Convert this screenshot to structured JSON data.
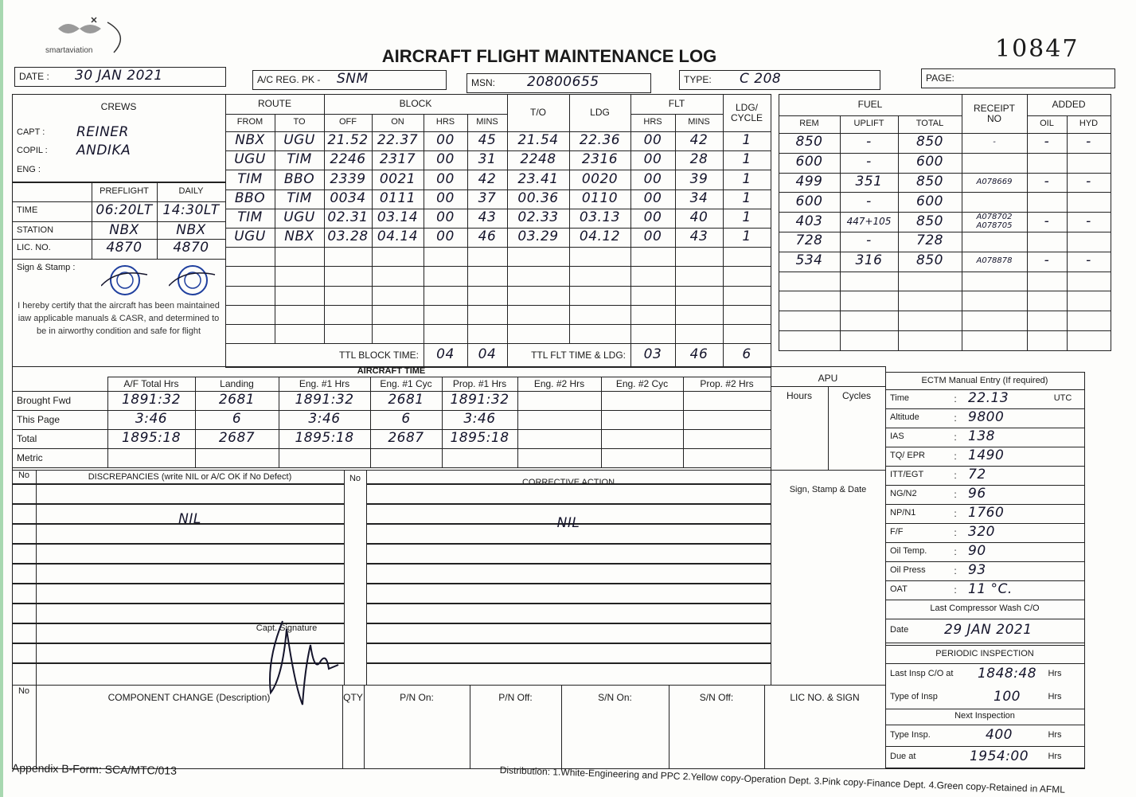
{
  "header": {
    "logo_text": "smartaviation",
    "title": "AIRCRAFT FLIGHT MAINTENANCE LOG",
    "serial": "10847",
    "date_label": "DATE :",
    "date": "30 JAN 2021",
    "reg_label": "A/C REG. PK -",
    "reg": "SNM",
    "msn_label": "MSN:",
    "msn": "20800655",
    "type_label": "TYPE:",
    "type": "C 208",
    "page_label": "PAGE:"
  },
  "crews": {
    "title": "CREWS",
    "capt_label": "CAPT :",
    "capt": "REINER",
    "copil_label": "COPIL :",
    "copil": "ANDIKA",
    "eng_label": "ENG :",
    "preflight_label": "PREFLIGHT",
    "daily_label": "DAILY",
    "time_label": "TIME",
    "time_preflight": "06:20LT",
    "time_daily": "14:30LT",
    "station_label": "STATION",
    "station_preflight": "NBX",
    "station_daily": "NBX",
    "lic_label": "LIC. NO.",
    "lic_preflight": "4870",
    "lic_daily": "4870",
    "sign_label": "Sign & Stamp :",
    "certify": "I hereby certify that the aircraft has been maintained iaw applicable manuals & CASR, and determined to be in airworthy condition and safe for flight"
  },
  "flights": {
    "route_label": "ROUTE",
    "block_label": "BLOCK",
    "to_label": "T/O",
    "ldg_label": "LDG",
    "flt_label": "FLT",
    "cycle_label": "LDG/ CYCLE",
    "sub": [
      "FROM",
      "TO",
      "OFF",
      "ON",
      "HRS",
      "MINS",
      "HRS",
      "MINS"
    ],
    "rows": [
      [
        "NBX",
        "UGU",
        "21.52",
        "22.37",
        "00",
        "45",
        "21.54",
        "22.36",
        "00",
        "42",
        "1"
      ],
      [
        "UGU",
        "TIM",
        "2246",
        "2317",
        "00",
        "31",
        "2248",
        "2316",
        "00",
        "28",
        "1"
      ],
      [
        "TIM",
        "BBO",
        "2339",
        "0021",
        "00",
        "42",
        "23.41",
        "0020",
        "00",
        "39",
        "1"
      ],
      [
        "BBO",
        "TIM",
        "0034",
        "0111",
        "00",
        "37",
        "00.36",
        "0110",
        "00",
        "34",
        "1"
      ],
      [
        "TIM",
        "UGU",
        "02.31",
        "03.14",
        "00",
        "43",
        "02.33",
        "03.13",
        "00",
        "40",
        "1"
      ],
      [
        "UGU",
        "NBX",
        "03.28",
        "04.14",
        "00",
        "46",
        "03.29",
        "04.12",
        "00",
        "43",
        "1"
      ]
    ],
    "ttl_block_label": "TTL BLOCK TIME:",
    "ttl_block_hrs": "04",
    "ttl_block_mins": "04",
    "ttl_flt_label": "TTL FLT TIME & LDG:",
    "ttl_flt_hrs": "03",
    "ttl_flt_mins": "46",
    "ttl_ldg": "6"
  },
  "fuel": {
    "fuel_label": "FUEL",
    "receipt_label": "RECEIPT NO",
    "added_label": "ADDED",
    "sub": [
      "REM",
      "UPLIFT",
      "TOTAL",
      "OIL",
      "HYD"
    ],
    "rows": [
      [
        "850",
        "-",
        "850",
        "-",
        "-",
        "-"
      ],
      [
        "600",
        "-",
        "600",
        "",
        "",
        ""
      ],
      [
        "499",
        "351",
        "850",
        "A078669",
        "-",
        "-"
      ],
      [
        "600",
        "-",
        "600",
        "",
        "",
        ""
      ],
      [
        "403",
        "447+105",
        "850",
        "A078702 A078705",
        "-",
        "-"
      ],
      [
        "728",
        "-",
        "728",
        "",
        "",
        ""
      ],
      [
        "534",
        "316",
        "850",
        "A078878",
        "-",
        "-"
      ]
    ]
  },
  "aircraft_time": {
    "title": "AIRCRAFT TIME",
    "columns": [
      "A/F Total Hrs",
      "Landing",
      "Eng. #1 Hrs",
      "Eng. #1 Cyc",
      "Prop. #1 Hrs",
      "Eng. #2 Hrs",
      "Eng. #2 Cyc",
      "Prop. #2 Hrs"
    ],
    "rows": [
      {
        "label": "Brought Fwd",
        "values": [
          "1891:32",
          "2681",
          "1891:32",
          "2681",
          "1891:32",
          "",
          "",
          ""
        ]
      },
      {
        "label": "This Page",
        "values": [
          "3:46",
          "6",
          "3:46",
          "6",
          "3:46",
          "",
          "",
          ""
        ]
      },
      {
        "label": "Total",
        "values": [
          "1895:18",
          "2687",
          "1895:18",
          "2687",
          "1895:18",
          "",
          "",
          ""
        ]
      },
      {
        "label": "Metric",
        "values": [
          "",
          "",
          "",
          "",
          "",
          "",
          "",
          ""
        ]
      }
    ]
  },
  "apu": {
    "title": "APU",
    "hours_label": "Hours",
    "cycles_label": "Cycles"
  },
  "ectm": {
    "title": "ECTM Manual Entry (If required)",
    "fields": [
      {
        "label": "Time",
        "value": "22.13",
        "unit": "UTC"
      },
      {
        "label": "Altitude",
        "value": "9800",
        "unit": ""
      },
      {
        "label": "IAS",
        "value": "138",
        "unit": ""
      },
      {
        "label": "TQ/ EPR",
        "value": "1490",
        "unit": ""
      },
      {
        "label": "ITT/EGT",
        "value": "72",
        "unit": ""
      },
      {
        "label": "NG/N2",
        "value": "96",
        "unit": ""
      },
      {
        "label": "NP/N1",
        "value": "1760",
        "unit": ""
      },
      {
        "label": "F/F",
        "value": "320",
        "unit": ""
      },
      {
        "label": "Oil Temp.",
        "value": "90",
        "unit": ""
      },
      {
        "label": "Oil Press",
        "value": "93",
        "unit": ""
      },
      {
        "label": "OAT",
        "value": "11 °C.",
        "unit": ""
      }
    ],
    "compressor_label": "Last Compressor Wash C/O",
    "date_label": "Date",
    "date": "29 JAN 2021",
    "periodic_label": "PERIODIC INSPECTION",
    "last_insp_label": "Last Insp C/O at",
    "last_insp": "1848:48",
    "hrs": "Hrs",
    "type_insp_label": "Type of Insp",
    "type_insp": "100",
    "next_label": "Next Inspection",
    "next_type_label": "Type Insp.",
    "next_type": "400",
    "due_label": "Due at",
    "due": "1954:00"
  },
  "discrepancies": {
    "no_label": "No",
    "title": "DISCREPANCIES (write NIL or A/C OK if No Defect)",
    "value": "NIL",
    "corrective_no_label": "No",
    "corrective_title": "CORRECTIVE ACTION",
    "corrective_value": "NIL",
    "sign_label": "Sign, Stamp & Date",
    "capt_sig_label": "Capt. Signature"
  },
  "components": {
    "no_label": "No",
    "columns": [
      "COMPONENT CHANGE (Description)",
      "QTY",
      "P/N On:",
      "P/N Off:",
      "S/N On:",
      "S/N Off:",
      "LIC NO. & SIGN"
    ]
  },
  "footer": {
    "appendix": "Appendix B-Form: SCA/MTC/013",
    "distribution": "Distribution: 1.White-Engineering and PPC  2.Yellow copy-Operation Dept.  3.Pink copy-Finance Dept.  4.Green copy-Retained in AFML"
  },
  "colors": {
    "ink": "#14142b",
    "print": "#1a1a1a",
    "stamp": "#1f3f9e"
  }
}
